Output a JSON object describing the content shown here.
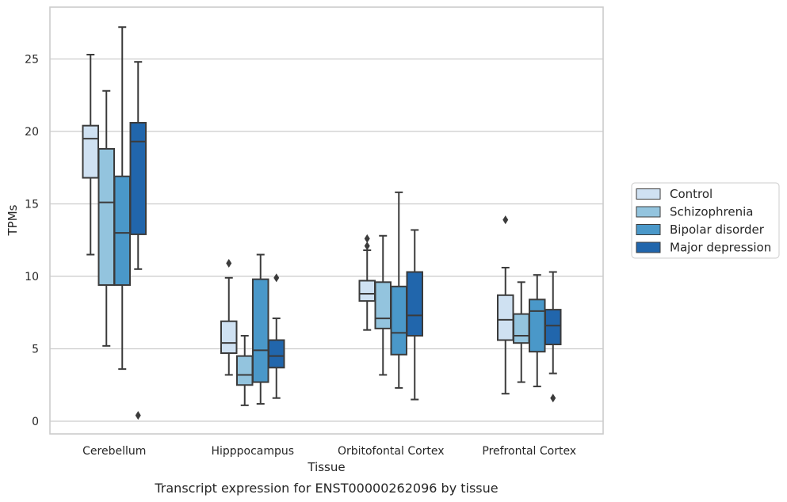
{
  "chart_data": {
    "type": "boxplot",
    "caption": "Transcript expression for ENST00000262096 by tissue",
    "xlabel": "Tissue",
    "ylabel": "TPMs",
    "ylim": [
      -0.8,
      28.0
    ],
    "yticks": [
      0,
      5,
      10,
      15,
      20,
      25
    ],
    "grid": "horizontal",
    "legend_placement": "right",
    "categories": [
      "Cerebellum",
      "Hipppocampus",
      "Orbitofontal Cortex",
      "Prefrontal Cortex"
    ],
    "series": [
      {
        "name": "Control",
        "color": "#cfe1f2",
        "boxes": [
          {
            "whisker_low": 11.5,
            "q1": 16.8,
            "median": 19.5,
            "q3": 20.4,
            "whisker_high": 25.3,
            "outliers": []
          },
          {
            "whisker_low": 3.2,
            "q1": 4.7,
            "median": 5.4,
            "q3": 6.9,
            "whisker_high": 9.9,
            "outliers": [
              10.9
            ]
          },
          {
            "whisker_low": 6.3,
            "q1": 8.3,
            "median": 8.8,
            "q3": 9.7,
            "whisker_high": 11.8,
            "outliers": [
              12.1,
              12.6
            ]
          },
          {
            "whisker_low": 1.9,
            "q1": 5.6,
            "median": 7.0,
            "q3": 8.7,
            "whisker_high": 10.6,
            "outliers": [
              13.9
            ]
          }
        ]
      },
      {
        "name": "Schizophrenia",
        "color": "#93c4de",
        "boxes": [
          {
            "whisker_low": 5.2,
            "q1": 9.4,
            "median": 15.1,
            "q3": 18.8,
            "whisker_high": 22.8,
            "outliers": []
          },
          {
            "whisker_low": 1.1,
            "q1": 2.5,
            "median": 3.2,
            "q3": 4.5,
            "whisker_high": 5.9,
            "outliers": []
          },
          {
            "whisker_low": 3.2,
            "q1": 6.4,
            "median": 7.1,
            "q3": 9.6,
            "whisker_high": 12.8,
            "outliers": []
          },
          {
            "whisker_low": 2.7,
            "q1": 5.4,
            "median": 5.9,
            "q3": 7.4,
            "whisker_high": 9.6,
            "outliers": []
          }
        ]
      },
      {
        "name": "Bipolar disorder",
        "color": "#4a98c9",
        "boxes": [
          {
            "whisker_low": 3.6,
            "q1": 9.4,
            "median": 13.0,
            "q3": 16.9,
            "whisker_high": 27.2,
            "outliers": []
          },
          {
            "whisker_low": 1.2,
            "q1": 2.7,
            "median": 4.9,
            "q3": 9.8,
            "whisker_high": 11.5,
            "outliers": []
          },
          {
            "whisker_low": 2.3,
            "q1": 4.6,
            "median": 6.1,
            "q3": 9.3,
            "whisker_high": 15.8,
            "outliers": []
          },
          {
            "whisker_low": 2.4,
            "q1": 4.8,
            "median": 7.6,
            "q3": 8.4,
            "whisker_high": 10.1,
            "outliers": []
          }
        ]
      },
      {
        "name": "Major depression",
        "color": "#2166ac",
        "boxes": [
          {
            "whisker_low": 10.5,
            "q1": 12.9,
            "median": 19.3,
            "q3": 20.6,
            "whisker_high": 24.8,
            "outliers": [
              0.4
            ]
          },
          {
            "whisker_low": 1.6,
            "q1": 3.7,
            "median": 4.5,
            "q3": 5.6,
            "whisker_high": 7.1,
            "outliers": [
              9.9
            ]
          },
          {
            "whisker_low": 1.5,
            "q1": 5.9,
            "median": 7.3,
            "q3": 10.3,
            "whisker_high": 13.2,
            "outliers": []
          },
          {
            "whisker_low": 3.3,
            "q1": 5.3,
            "median": 6.6,
            "q3": 7.7,
            "whisker_high": 10.3,
            "outliers": [
              1.6
            ]
          }
        ]
      }
    ]
  }
}
